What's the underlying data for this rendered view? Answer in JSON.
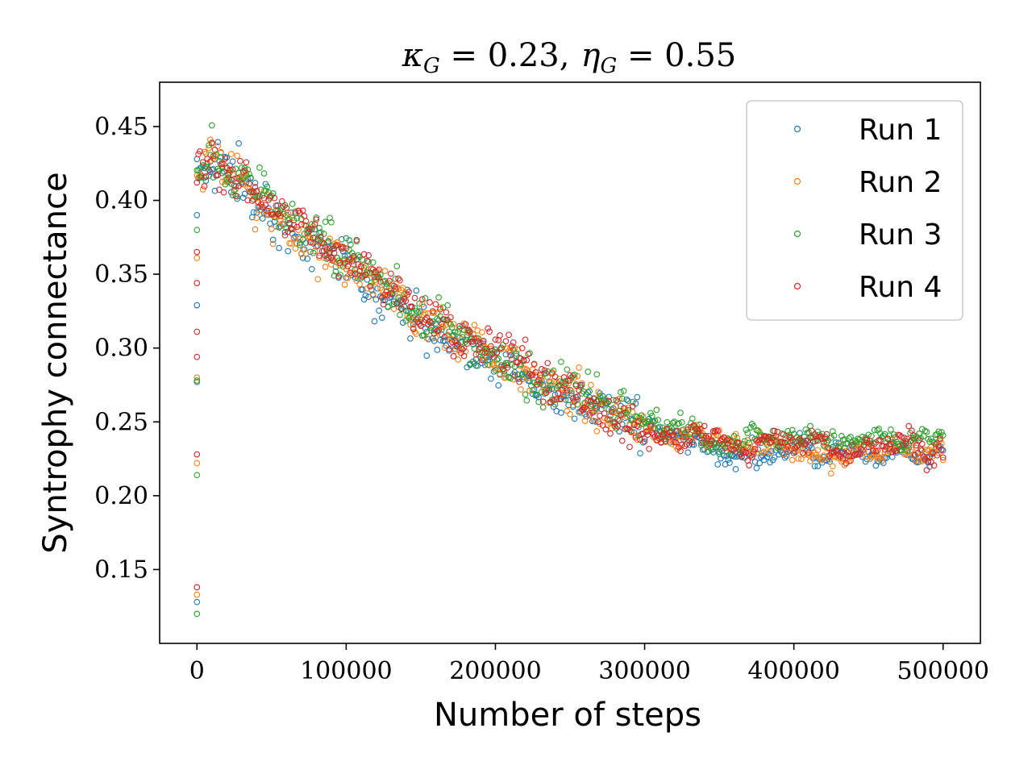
{
  "chart_data": {
    "type": "scatter",
    "title_parts": {
      "kappa_symbol": "κ",
      "kappa_sub": "G",
      "kappa_value": " = 0.23,",
      "eta_symbol": "η",
      "eta_sub": "G",
      "eta_value": " = 0.55"
    },
    "xlabel": "Number of steps",
    "ylabel": "Syntrophy connectance",
    "xlim": [
      -25000,
      525000
    ],
    "ylim": [
      0.1,
      0.48
    ],
    "x_ticks": [
      0,
      100000,
      200000,
      300000,
      400000,
      500000
    ],
    "y_ticks": [
      0.15,
      0.2,
      0.25,
      0.3,
      0.35,
      0.4,
      0.45
    ],
    "legend_position": "top-right",
    "marker": "hollow-circle",
    "x_step": 1000,
    "series": [
      {
        "name": "Run 1",
        "color": "#1f77b4",
        "noise": 0.01,
        "start_values": [
          0.128,
          0.277,
          0.329,
          0.39
        ],
        "trend": [
          [
            0,
            0.42
          ],
          [
            10000,
            0.425
          ],
          [
            50000,
            0.39
          ],
          [
            100000,
            0.355
          ],
          [
            150000,
            0.32
          ],
          [
            200000,
            0.29
          ],
          [
            250000,
            0.265
          ],
          [
            300000,
            0.245
          ],
          [
            350000,
            0.232
          ],
          [
            400000,
            0.229
          ],
          [
            450000,
            0.23
          ],
          [
            500000,
            0.228
          ]
        ]
      },
      {
        "name": "Run 2",
        "color": "#ff7f0e",
        "noise": 0.01,
        "start_values": [
          0.133,
          0.222,
          0.28,
          0.361
        ],
        "trend": [
          [
            0,
            0.42
          ],
          [
            10000,
            0.43
          ],
          [
            50000,
            0.392
          ],
          [
            100000,
            0.357
          ],
          [
            150000,
            0.322
          ],
          [
            200000,
            0.292
          ],
          [
            250000,
            0.267
          ],
          [
            300000,
            0.246
          ],
          [
            350000,
            0.235
          ],
          [
            400000,
            0.232
          ],
          [
            450000,
            0.233
          ],
          [
            500000,
            0.231
          ]
        ]
      },
      {
        "name": "Run 3",
        "color": "#2ca02c",
        "noise": 0.01,
        "start_values": [
          0.12,
          0.214,
          0.278,
          0.38
        ],
        "trend": [
          [
            0,
            0.42
          ],
          [
            10000,
            0.428
          ],
          [
            50000,
            0.394
          ],
          [
            100000,
            0.36
          ],
          [
            150000,
            0.325
          ],
          [
            200000,
            0.295
          ],
          [
            250000,
            0.27
          ],
          [
            300000,
            0.25
          ],
          [
            350000,
            0.239
          ],
          [
            400000,
            0.237
          ],
          [
            450000,
            0.238
          ],
          [
            500000,
            0.237
          ]
        ]
      },
      {
        "name": "Run 4",
        "color": "#d62728",
        "noise": 0.01,
        "start_values": [
          0.138,
          0.228,
          0.294,
          0.311,
          0.344,
          0.365
        ],
        "trend": [
          [
            0,
            0.42
          ],
          [
            10000,
            0.43
          ],
          [
            50000,
            0.393
          ],
          [
            100000,
            0.358
          ],
          [
            150000,
            0.323
          ],
          [
            200000,
            0.293
          ],
          [
            250000,
            0.268
          ],
          [
            300000,
            0.247
          ],
          [
            350000,
            0.235
          ],
          [
            400000,
            0.233
          ],
          [
            450000,
            0.233
          ],
          [
            500000,
            0.23
          ]
        ]
      }
    ]
  }
}
